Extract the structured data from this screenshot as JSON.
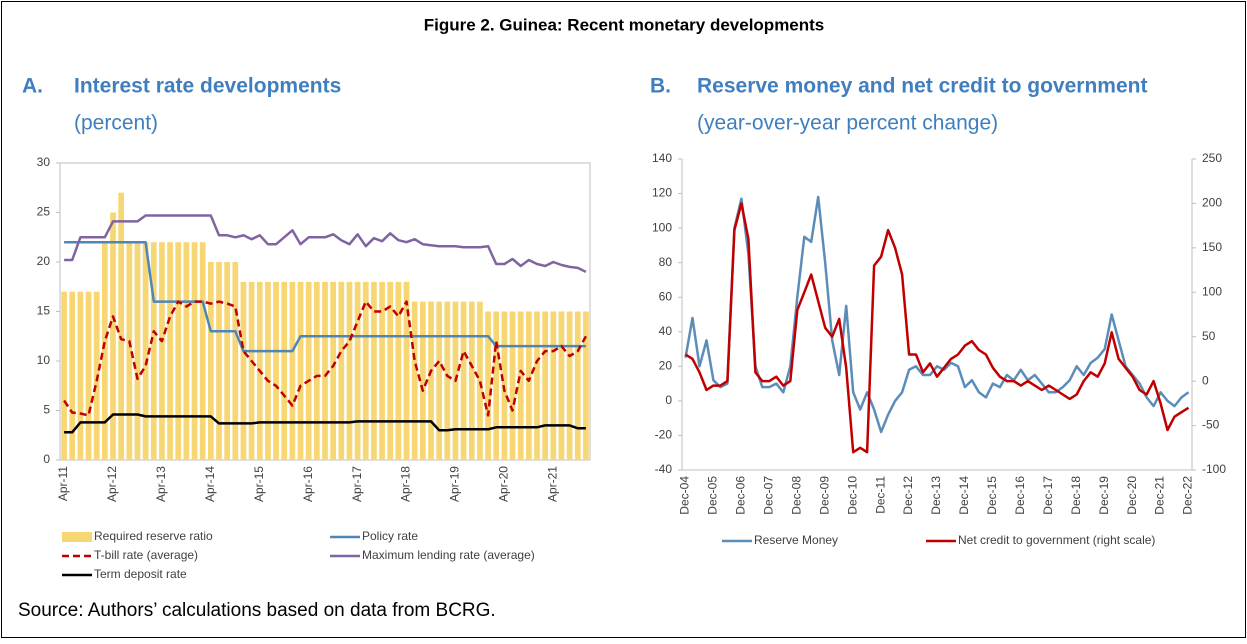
{
  "figure_title": "Figure 2. Guinea: Recent monetary developments",
  "source": "Source: Authors’ calculations based on data from BCRG.",
  "chart_data": [
    {
      "type": "combo",
      "panel": "A.",
      "title": "Interest rate developments",
      "subtitle": "(percent)",
      "categories": [
        "Apr-11",
        null,
        null,
        null,
        null,
        null,
        "Apr-12",
        null,
        null,
        null,
        null,
        null,
        "Apr-13",
        null,
        null,
        null,
        null,
        null,
        "Apr-14",
        null,
        null,
        null,
        null,
        null,
        "Apr-15",
        null,
        null,
        null,
        null,
        null,
        "Apr-16",
        null,
        null,
        null,
        null,
        null,
        "Apr-17",
        null,
        null,
        null,
        null,
        null,
        "Apr-18",
        null,
        null,
        null,
        null,
        null,
        "Apr-19",
        null,
        null,
        null,
        null,
        null,
        "Apr-20",
        null,
        null,
        null,
        null,
        null,
        "Apr-21",
        null,
        null,
        null,
        null
      ],
      "ylim": [
        0,
        30
      ],
      "yticks": [
        0,
        5,
        10,
        15,
        20,
        25,
        30
      ],
      "grid": false,
      "series": [
        {
          "name": "Required reserve ratio",
          "type": "bar",
          "color": "#f7d774",
          "values": [
            17,
            17,
            17,
            17,
            17,
            22,
            25,
            27,
            22,
            22,
            22,
            22,
            22,
            22,
            22,
            22,
            22,
            22,
            20,
            20,
            20,
            20,
            18,
            18,
            18,
            18,
            18,
            18,
            18,
            18,
            18,
            18,
            18,
            18,
            18,
            18,
            18,
            18,
            18,
            18,
            18,
            18,
            18,
            16,
            16,
            16,
            16,
            16,
            16,
            16,
            16,
            16,
            15,
            15,
            15,
            15,
            15,
            15,
            15,
            15,
            15,
            15,
            15,
            15,
            15
          ]
        },
        {
          "name": "Policy rate",
          "type": "line",
          "color": "#4f86b5",
          "values": [
            22,
            22,
            22,
            22,
            22,
            22,
            22,
            22,
            22,
            22,
            22,
            16,
            16,
            16,
            16,
            16,
            16,
            16,
            13,
            13,
            13,
            13,
            11,
            11,
            11,
            11,
            11,
            11,
            11,
            12.5,
            12.5,
            12.5,
            12.5,
            12.5,
            12.5,
            12.5,
            12.5,
            12.5,
            12.5,
            12.5,
            12.5,
            12.5,
            12.5,
            12.5,
            12.5,
            12.5,
            12.5,
            12.5,
            12.5,
            12.5,
            12.5,
            12.5,
            12.5,
            11.5,
            11.5,
            11.5,
            11.5,
            11.5,
            11.5,
            11.5,
            11.5,
            11.5,
            11.5,
            11.5,
            11.5
          ]
        },
        {
          "name": "T-bill rate (average)",
          "type": "line",
          "dash": true,
          "color": "#c00000",
          "values": [
            6,
            4.8,
            4.7,
            4.5,
            8,
            12,
            14.5,
            12.2,
            12,
            8.2,
            9.5,
            13,
            12,
            14.5,
            16,
            15.5,
            16,
            16,
            15.8,
            16,
            15.8,
            15.5,
            11,
            10,
            9,
            8,
            7.5,
            6.5,
            5.5,
            7.5,
            8,
            8.5,
            8.5,
            9.5,
            11,
            12,
            14,
            16,
            15,
            15,
            15.5,
            14.5,
            16,
            10,
            7,
            9,
            10,
            8.5,
            8,
            11,
            9.5,
            8,
            4.5,
            12,
            7,
            5,
            9,
            8,
            10,
            11,
            11,
            11.5,
            10.5,
            11,
            12.5
          ]
        },
        {
          "name": "Maximum lending rate (average)",
          "type": "line",
          "color": "#8064a2",
          "values": [
            20.2,
            20.2,
            22.5,
            22.5,
            22.5,
            22.5,
            24.1,
            24.1,
            24.1,
            24.1,
            24.7,
            24.7,
            24.7,
            24.7,
            24.7,
            24.7,
            24.7,
            24.7,
            24.7,
            22.7,
            22.7,
            22.5,
            22.7,
            22.3,
            22.7,
            21.8,
            21.8,
            22.5,
            23.2,
            21.8,
            22.5,
            22.5,
            22.5,
            22.8,
            22.2,
            21.8,
            22.8,
            21.6,
            22.4,
            22.1,
            22.9,
            22.2,
            22,
            22.3,
            21.8,
            21.7,
            21.6,
            21.6,
            21.6,
            21.5,
            21.5,
            21.5,
            21.6,
            19.8,
            19.8,
            20.3,
            19.6,
            20.2,
            19.8,
            19.6,
            20,
            19.7,
            19.5,
            19.4,
            19
          ]
        },
        {
          "name": "Term deposit rate",
          "type": "line",
          "color": "#000000",
          "values": [
            2.8,
            2.8,
            3.8,
            3.8,
            3.8,
            3.8,
            4.6,
            4.6,
            4.6,
            4.6,
            4.4,
            4.4,
            4.4,
            4.4,
            4.4,
            4.4,
            4.4,
            4.4,
            4.4,
            3.7,
            3.7,
            3.7,
            3.7,
            3.7,
            3.8,
            3.8,
            3.8,
            3.8,
            3.8,
            3.8,
            3.8,
            3.8,
            3.8,
            3.8,
            3.8,
            3.8,
            3.9,
            3.9,
            3.9,
            3.9,
            3.9,
            3.9,
            3.9,
            3.9,
            3.9,
            3.9,
            3.0,
            3.0,
            3.1,
            3.1,
            3.1,
            3.1,
            3.1,
            3.3,
            3.3,
            3.3,
            3.3,
            3.3,
            3.3,
            3.5,
            3.5,
            3.5,
            3.5,
            3.2,
            3.2
          ]
        }
      ]
    },
    {
      "type": "line",
      "panel": "B.",
      "title": "Reserve money and net credit to government",
      "subtitle": "(year-over-year percent change)",
      "categories": [
        "Dec-04",
        null,
        null,
        null,
        "Dec-05",
        null,
        null,
        null,
        "Dec-06",
        null,
        null,
        null,
        "Dec-07",
        null,
        null,
        null,
        "Dec-08",
        null,
        null,
        null,
        "Dec-09",
        null,
        null,
        null,
        "Dec-10",
        null,
        null,
        null,
        "Dec-11",
        null,
        null,
        null,
        "Dec-12",
        null,
        null,
        null,
        "Dec-13",
        null,
        null,
        null,
        "Dec-14",
        null,
        null,
        null,
        "Dec-15",
        null,
        null,
        null,
        "Dec-16",
        null,
        null,
        null,
        "Dec-17",
        null,
        null,
        null,
        "Dec-18",
        null,
        null,
        null,
        "Dec-19",
        null,
        null,
        null,
        "Dec-20",
        null,
        null,
        null,
        "Dec-21",
        null,
        null,
        null,
        "Dec-22"
      ],
      "ylim": [
        -40,
        140
      ],
      "yticks": [
        -40,
        -20,
        0,
        20,
        40,
        60,
        80,
        100,
        120,
        140
      ],
      "y2lim": [
        -100,
        250
      ],
      "y2ticks": [
        -100,
        -50,
        0,
        50,
        100,
        150,
        200,
        250
      ],
      "grid": false,
      "series": [
        {
          "name": "Reserve Money",
          "color": "#5b8db8",
          "values": [
            25,
            48,
            20,
            35,
            12,
            8,
            10,
            100,
            117,
            85,
            20,
            8,
            8,
            10,
            5,
            20,
            60,
            95,
            92,
            118,
            80,
            35,
            15,
            55,
            5,
            -5,
            5,
            -5,
            -18,
            -8,
            0,
            5,
            18,
            20,
            15,
            15,
            20,
            18,
            22,
            20,
            8,
            12,
            5,
            2,
            10,
            8,
            15,
            12,
            18,
            12,
            15,
            10,
            5,
            5,
            8,
            12,
            20,
            15,
            22,
            25,
            30,
            50,
            35,
            20,
            15,
            10,
            2,
            -3,
            5,
            0,
            -3,
            2,
            5
          ]
        },
        {
          "name": "Net credit to government (right scale)",
          "axis": "y2",
          "color": "#c00000",
          "values": [
            30,
            25,
            10,
            -10,
            -5,
            -5,
            0,
            170,
            200,
            160,
            10,
            0,
            0,
            5,
            -5,
            0,
            80,
            100,
            120,
            90,
            60,
            50,
            70,
            15,
            -80,
            -75,
            -80,
            130,
            140,
            170,
            150,
            120,
            30,
            30,
            10,
            20,
            5,
            15,
            25,
            30,
            40,
            45,
            35,
            30,
            15,
            5,
            0,
            0,
            -5,
            0,
            -5,
            -10,
            -5,
            -10,
            -15,
            -20,
            -15,
            0,
            10,
            5,
            20,
            55,
            25,
            15,
            5,
            -10,
            -15,
            0,
            -25,
            -55,
            -40,
            -35,
            -30
          ]
        }
      ]
    }
  ]
}
